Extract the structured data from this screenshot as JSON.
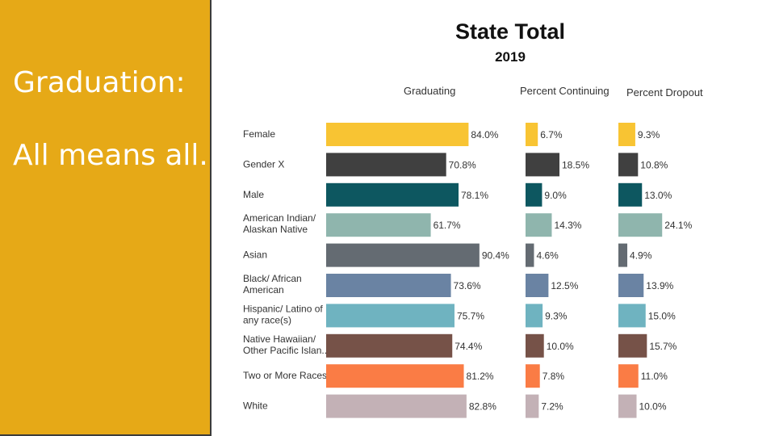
{
  "slide": {
    "line1": "Graduation:",
    "line2": "All means all."
  },
  "chart_data": {
    "type": "bar",
    "title": "State Total",
    "subtitle": "2019",
    "categories": [
      [
        "Female"
      ],
      [
        "Gender X"
      ],
      [
        "Male"
      ],
      [
        "American Indian/",
        "Alaskan Native"
      ],
      [
        "Asian"
      ],
      [
        "Black/ African",
        "American"
      ],
      [
        "Hispanic/ Latino of",
        "any race(s)"
      ],
      [
        "Native Hawaiian/",
        "Other Pacific Islan.."
      ],
      [
        "Two or More Races"
      ],
      [
        "White"
      ]
    ],
    "colors": [
      "#f8c433",
      "#404040",
      "#0d5760",
      "#8fb5ad",
      "#646b72",
      "#6a83a3",
      "#6fb3c0",
      "#765248",
      "#fa7c45",
      "#c3b1b6"
    ],
    "series": [
      {
        "name": "Graduating",
        "values": [
          84.0,
          70.8,
          78.1,
          61.7,
          90.4,
          73.6,
          75.7,
          74.4,
          81.2,
          82.8
        ],
        "labels": [
          "84.0%",
          "70.8%",
          "78.1%",
          "61.7%",
          "90.4%",
          "73.6%",
          "75.7%",
          "74.4%",
          "81.2%",
          "82.8%"
        ]
      },
      {
        "name": "Percent Continuing",
        "values": [
          6.7,
          18.5,
          9.0,
          14.3,
          4.6,
          12.5,
          9.3,
          10.0,
          7.8,
          7.2
        ],
        "labels": [
          "6.7%",
          "18.5%",
          "9.0%",
          "14.3%",
          "4.6%",
          "12.5%",
          "9.3%",
          "10.0%",
          "7.8%",
          "7.2%"
        ]
      },
      {
        "name": "Percent Dropout",
        "values": [
          9.3,
          10.8,
          13.0,
          24.1,
          4.9,
          13.9,
          15.0,
          15.7,
          11.0,
          10.0
        ],
        "labels": [
          "9.3%",
          "10.8%",
          "13.0%",
          "24.1%",
          "4.9%",
          "13.9%",
          "15.0%",
          "15.7%",
          "11.0%",
          "10.0%"
        ]
      }
    ]
  }
}
